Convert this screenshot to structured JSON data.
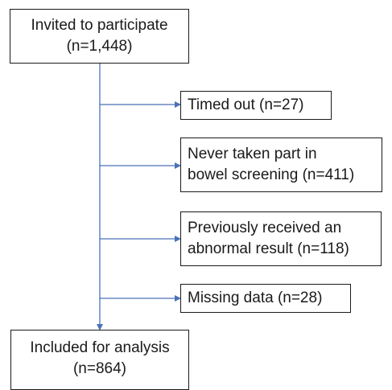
{
  "top_box": {
    "line1": "Invited to participate",
    "line2": "(n=1,448)"
  },
  "exclusions": [
    {
      "line1": "Timed out (n=27)",
      "line2": ""
    },
    {
      "line1": "Never taken part in",
      "line2": "bowel screening (n=411)"
    },
    {
      "line1": "Previously received an",
      "line2": "abnormal result (n=118)"
    },
    {
      "line1": "Missing data (n=28)",
      "line2": ""
    }
  ],
  "bottom_box": {
    "line1": "Included for analysis",
    "line2": "(n=864)"
  },
  "colors": {
    "connector": "#4a72b8",
    "box_border": "#1a1a1a"
  }
}
